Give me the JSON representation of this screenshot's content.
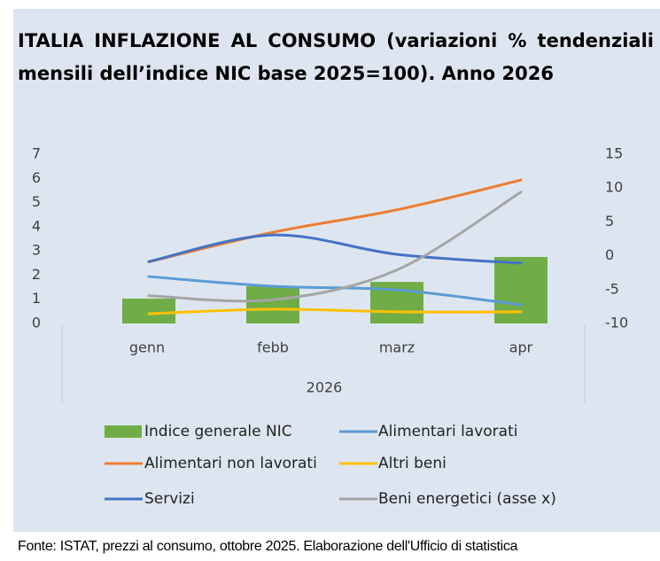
{
  "chart_data": {
    "type": "bar_line",
    "title": "ITALIA INFLAZIONE AL CONSUMO (variazioni % tendenziali mensili dell’indice NIC base 2025=100). Anno 2026",
    "categories": [
      "genn",
      "febb",
      "marz",
      "apr"
    ],
    "x_group": "2026",
    "ylim": [
      0,
      7
    ],
    "yticks": [
      0,
      1,
      2,
      3,
      4,
      5,
      6,
      7
    ],
    "y2lim": [
      -10,
      15
    ],
    "y2ticks": [
      -10,
      -5,
      0,
      5,
      10,
      15
    ],
    "series": [
      {
        "name": "Indice generale NIC",
        "kind": "bar",
        "color": "#70ad47",
        "values": [
          1.03,
          1.54,
          1.72,
          2.75
        ]
      },
      {
        "name": "Alimentari lavorati",
        "kind": "line",
        "color": "#5b9bd5",
        "values": [
          1.94,
          1.54,
          1.39,
          0.77
        ]
      },
      {
        "name": "Alimentari non lavorati",
        "kind": "line",
        "color": "#ed7d31",
        "values": [
          2.55,
          3.77,
          4.7,
          5.93
        ]
      },
      {
        "name": "Altri beni",
        "kind": "line",
        "color": "#ffc000",
        "values": [
          0.4,
          0.59,
          0.48,
          0.48
        ]
      },
      {
        "name": "Servizi",
        "kind": "line",
        "color": "#4472c4",
        "values": [
          2.56,
          3.66,
          2.86,
          2.49
        ]
      },
      {
        "name": "Beni energetici (asse x)",
        "kind": "line",
        "color": "#a5a5a5",
        "axis": "y2",
        "values": [
          -5.9,
          -6.5,
          -2.1,
          9.4
        ]
      }
    ],
    "source": "Fonte: ISTAT, prezzi al consumo, ottobre 2025. Elaborazione dell'Ufficio di statistica"
  }
}
